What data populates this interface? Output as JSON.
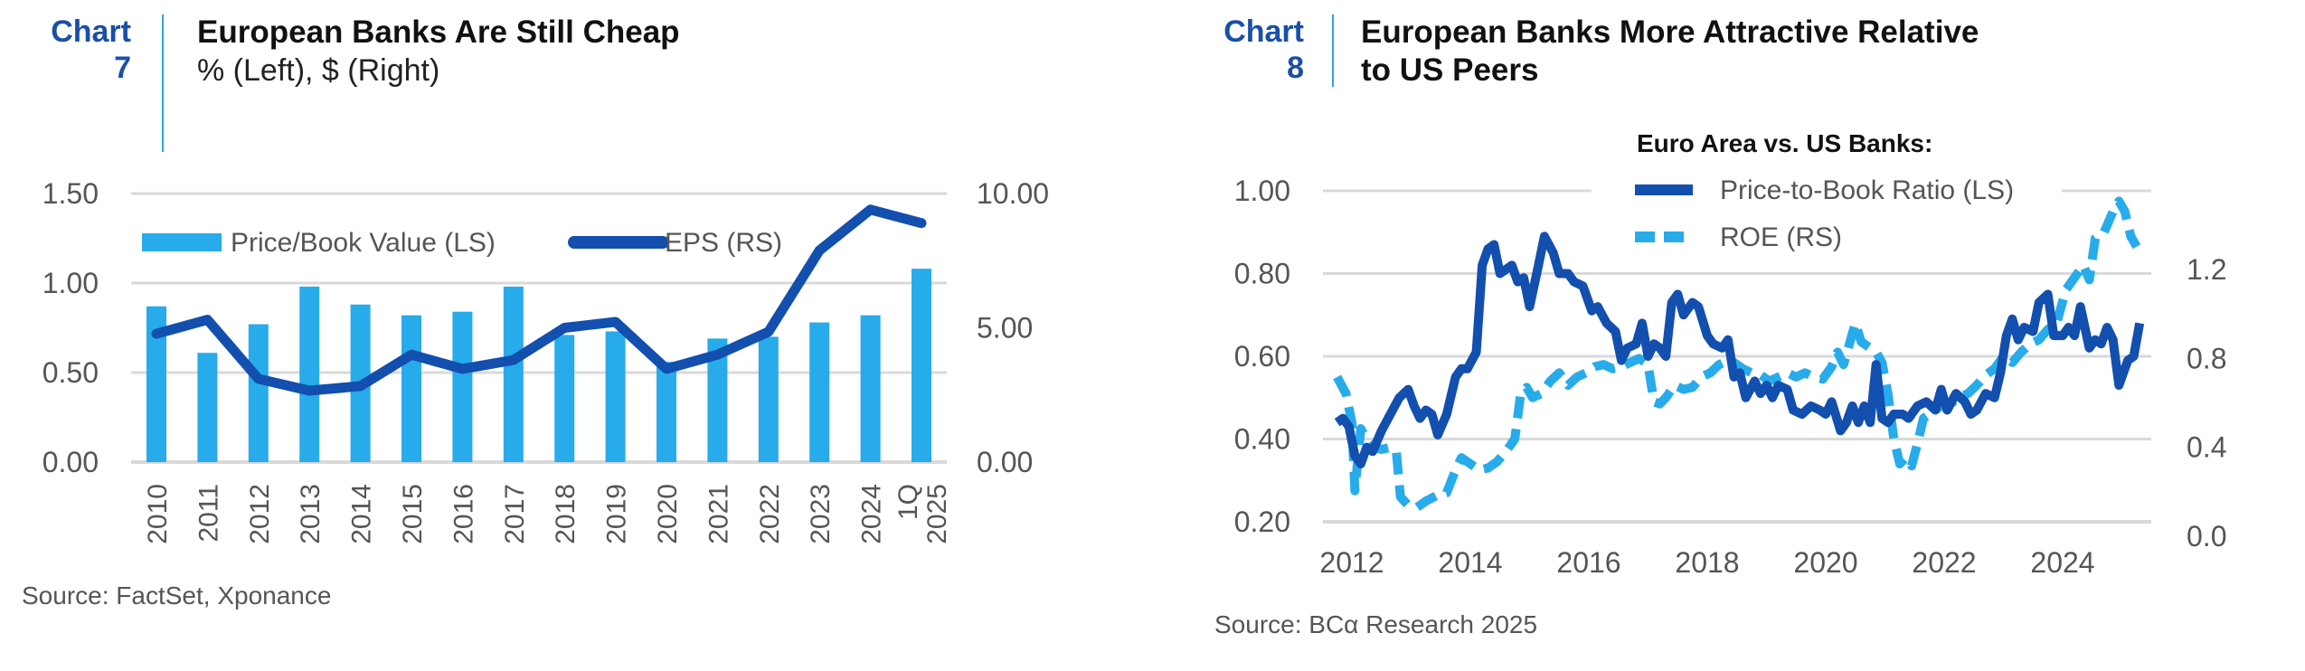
{
  "charts": [
    {
      "label": "Chart",
      "number": "7",
      "title": "European Banks Are Still Cheap",
      "subtitle": "% (Left), $ (Right)",
      "source": "Source: FactSet, Xponance"
    },
    {
      "label": "Chart",
      "number": "8",
      "title_line1": "European Banks More Attractive Relative",
      "title_line2": "to US Peers",
      "source": "Source: BCα Research 2025"
    }
  ],
  "colors": {
    "accent_blue": "#1b4fa6",
    "divider": "#29a8e0",
    "bar": "#27abeb",
    "dark_line": "#124fae",
    "light_line": "#27abeb",
    "grid": "#d9d9d9"
  },
  "chart_data": [
    {
      "type": "bar+line",
      "title": "European Banks Are Still Cheap",
      "subtitle": "% (Left), $ (Right)",
      "categories": [
        "2010",
        "2011",
        "2012",
        "2013",
        "2014",
        "2015",
        "2016",
        "2017",
        "2018",
        "2019",
        "2020",
        "2021",
        "2022",
        "2023",
        "2024",
        "1Q 2025"
      ],
      "category_lines": [
        [
          "2010"
        ],
        [
          "2011"
        ],
        [
          "2012"
        ],
        [
          "2013"
        ],
        [
          "2014"
        ],
        [
          "2015"
        ],
        [
          "2016"
        ],
        [
          "2017"
        ],
        [
          "2018"
        ],
        [
          "2019"
        ],
        [
          "2020"
        ],
        [
          "2021"
        ],
        [
          "2022"
        ],
        [
          "2023"
        ],
        [
          "2024"
        ],
        [
          "1Q",
          "2025"
        ]
      ],
      "series": [
        {
          "name": "Price/Book Value (LS)",
          "type": "bar",
          "axis": "left",
          "values": [
            0.87,
            0.61,
            0.77,
            0.98,
            0.88,
            0.82,
            0.84,
            0.98,
            0.71,
            0.73,
            0.56,
            0.69,
            0.7,
            0.78,
            0.82,
            1.08
          ]
        },
        {
          "name": "EPS (RS)",
          "type": "line",
          "axis": "right",
          "values": [
            4.78,
            5.3,
            3.1,
            2.66,
            2.83,
            4.0,
            3.47,
            3.8,
            5.0,
            5.22,
            3.47,
            4.0,
            4.85,
            7.88,
            9.4,
            8.9
          ]
        }
      ],
      "left_axis": {
        "ylim": [
          0,
          1.5
        ],
        "ticks": [
          "0.00",
          "0.50",
          "1.00",
          "1.50"
        ],
        "tick_values": [
          0,
          0.5,
          1.0,
          1.5
        ]
      },
      "right_axis": {
        "ylim": [
          0,
          10
        ],
        "ticks": [
          "0.00",
          "5.00",
          "10.00"
        ],
        "tick_values": [
          0,
          5,
          10
        ]
      },
      "legend": [
        "Price/Book Value (LS)",
        "EPS (RS)"
      ],
      "legend_position": "top-left",
      "grid": true
    },
    {
      "type": "line",
      "title": "European Banks More Attractive Relative to US Peers",
      "legend_title": "Euro Area vs. US Banks:",
      "legend_position": "top-right",
      "grid": true,
      "x_ticks": [
        "2012",
        "2014",
        "2016",
        "2018",
        "2020",
        "2022",
        "2024"
      ],
      "x_tick_values": [
        2012,
        2014,
        2016,
        2018,
        2020,
        2022,
        2024
      ],
      "xlim": [
        2011.5,
        2025.5
      ],
      "left_axis": {
        "ylim": [
          0.2,
          1.0
        ],
        "ticks": [
          "0.20",
          "0.40",
          "0.60",
          "0.80",
          "1.00"
        ],
        "tick_values": [
          0.2,
          0.4,
          0.6,
          0.8,
          1.0
        ]
      },
      "right_axis": {
        "ylim": [
          0.0,
          1.6
        ],
        "ticks": [
          "0.0",
          "0.4",
          "0.8",
          "1.2"
        ],
        "tick_values": [
          0.0,
          0.4,
          0.8,
          1.2
        ]
      },
      "series": [
        {
          "name": "Price-to-Book Ratio (LS)",
          "axis": "left",
          "style": "solid",
          "x": [
            2011.75,
            2011.85,
            2011.95,
            2012.05,
            2012.15,
            2012.25,
            2012.35,
            2012.5,
            2012.65,
            2012.8,
            2012.95,
            2013.05,
            2013.15,
            2013.25,
            2013.35,
            2013.45,
            2013.6,
            2013.75,
            2013.85,
            2013.95,
            2014.1,
            2014.2,
            2014.3,
            2014.4,
            2014.5,
            2014.6,
            2014.7,
            2014.8,
            2014.9,
            2015.0,
            2015.15,
            2015.25,
            2015.4,
            2015.5,
            2015.65,
            2015.75,
            2015.9,
            2016.05,
            2016.15,
            2016.3,
            2016.45,
            2016.55,
            2016.65,
            2016.8,
            2016.9,
            2017.0,
            2017.1,
            2017.2,
            2017.3,
            2017.4,
            2017.5,
            2017.6,
            2017.75,
            2017.85,
            2018.0,
            2018.1,
            2018.25,
            2018.35,
            2018.45,
            2018.55,
            2018.65,
            2018.8,
            2018.9,
            2019.0,
            2019.1,
            2019.2,
            2019.35,
            2019.45,
            2019.6,
            2019.75,
            2019.9,
            2020.0,
            2020.1,
            2020.25,
            2020.35,
            2020.45,
            2020.55,
            2020.65,
            2020.75,
            2020.85,
            2020.95,
            2021.05,
            2021.15,
            2021.3,
            2021.4,
            2021.55,
            2021.7,
            2021.85,
            2021.95,
            2022.05,
            2022.2,
            2022.35,
            2022.45,
            2022.55,
            2022.7,
            2022.85,
            2022.95,
            2023.05,
            2023.15,
            2023.25,
            2023.35,
            2023.5,
            2023.6,
            2023.75,
            2023.85,
            2024.0,
            2024.1,
            2024.2,
            2024.3,
            2024.45,
            2024.55,
            2024.65,
            2024.75,
            2024.85,
            2024.95,
            2025.1,
            2025.2,
            2025.3
          ],
          "values": [
            0.44,
            0.45,
            0.43,
            0.36,
            0.34,
            0.38,
            0.37,
            0.42,
            0.46,
            0.5,
            0.52,
            0.48,
            0.45,
            0.47,
            0.46,
            0.41,
            0.46,
            0.55,
            0.57,
            0.57,
            0.61,
            0.82,
            0.86,
            0.87,
            0.8,
            0.81,
            0.82,
            0.78,
            0.79,
            0.72,
            0.82,
            0.89,
            0.85,
            0.8,
            0.8,
            0.78,
            0.77,
            0.71,
            0.72,
            0.68,
            0.66,
            0.59,
            0.62,
            0.63,
            0.68,
            0.6,
            0.63,
            0.62,
            0.6,
            0.73,
            0.75,
            0.7,
            0.73,
            0.72,
            0.65,
            0.63,
            0.62,
            0.64,
            0.55,
            0.56,
            0.5,
            0.54,
            0.51,
            0.53,
            0.5,
            0.53,
            0.52,
            0.47,
            0.46,
            0.48,
            0.47,
            0.46,
            0.49,
            0.42,
            0.44,
            0.48,
            0.44,
            0.48,
            0.44,
            0.58,
            0.45,
            0.44,
            0.46,
            0.46,
            0.45,
            0.48,
            0.49,
            0.47,
            0.52,
            0.47,
            0.51,
            0.49,
            0.46,
            0.47,
            0.51,
            0.5,
            0.56,
            0.65,
            0.69,
            0.64,
            0.67,
            0.66,
            0.73,
            0.75,
            0.65,
            0.65,
            0.67,
            0.65,
            0.72,
            0.62,
            0.64,
            0.63,
            0.67,
            0.64,
            0.53,
            0.59,
            0.6,
            0.68
          ]
        },
        {
          "name": "ROE (RS)",
          "axis": "right",
          "style": "dashed",
          "x": [
            2011.75,
            2011.9,
            2012.0,
            2012.05,
            2012.15,
            2012.25,
            2012.35,
            2012.5,
            2012.65,
            2012.75,
            2012.82,
            2012.95,
            2013.1,
            2013.25,
            2013.45,
            2013.6,
            2013.75,
            2013.85,
            2014.0,
            2014.15,
            2014.3,
            2014.45,
            2014.6,
            2014.75,
            2014.85,
            2014.95,
            2015.05,
            2015.2,
            2015.35,
            2015.5,
            2015.65,
            2015.8,
            2015.95,
            2016.1,
            2016.25,
            2016.4,
            2016.55,
            2016.7,
            2016.85,
            2017.0,
            2017.1,
            2017.2,
            2017.3,
            2017.45,
            2017.6,
            2017.75,
            2017.9,
            2018.05,
            2018.2,
            2018.35,
            2018.45,
            2018.6,
            2018.75,
            2018.9,
            2019.05,
            2019.2,
            2019.35,
            2019.5,
            2019.65,
            2019.8,
            2019.95,
            2020.1,
            2020.2,
            2020.3,
            2020.4,
            2020.5,
            2020.6,
            2020.7,
            2020.85,
            2020.95,
            2021.05,
            2021.15,
            2021.25,
            2021.35,
            2021.45,
            2021.55,
            2021.65,
            2021.8,
            2021.95,
            2022.1,
            2022.25,
            2022.4,
            2022.55,
            2022.7,
            2022.85,
            2023.0,
            2023.15,
            2023.3,
            2023.45,
            2023.6,
            2023.75,
            2023.9,
            2024.05,
            2024.2,
            2024.35,
            2024.45,
            2024.55,
            2024.7,
            2024.85,
            2024.95,
            2025.05,
            2025.15,
            2025.25
          ],
          "values": [
            0.7,
            0.62,
            0.48,
            0.15,
            0.45,
            0.4,
            0.36,
            0.35,
            0.36,
            0.34,
            0.12,
            0.08,
            0.07,
            0.1,
            0.13,
            0.14,
            0.25,
            0.31,
            0.28,
            0.25,
            0.26,
            0.29,
            0.34,
            0.4,
            0.62,
            0.65,
            0.6,
            0.62,
            0.68,
            0.72,
            0.66,
            0.7,
            0.72,
            0.75,
            0.76,
            0.74,
            0.75,
            0.77,
            0.79,
            0.76,
            0.58,
            0.57,
            0.6,
            0.66,
            0.64,
            0.65,
            0.7,
            0.72,
            0.76,
            0.78,
            0.77,
            0.74,
            0.72,
            0.71,
            0.68,
            0.7,
            0.72,
            0.7,
            0.72,
            0.7,
            0.69,
            0.75,
            0.82,
            0.76,
            0.86,
            0.96,
            0.87,
            0.85,
            0.82,
            0.77,
            0.62,
            0.4,
            0.28,
            0.31,
            0.27,
            0.38,
            0.5,
            0.53,
            0.56,
            0.57,
            0.6,
            0.62,
            0.66,
            0.71,
            0.74,
            0.8,
            0.77,
            0.82,
            0.86,
            0.88,
            0.93,
            0.96,
            1.12,
            1.18,
            1.24,
            1.17,
            1.37,
            1.4,
            1.5,
            1.55,
            1.5,
            1.38,
            1.33
          ]
        }
      ]
    }
  ]
}
